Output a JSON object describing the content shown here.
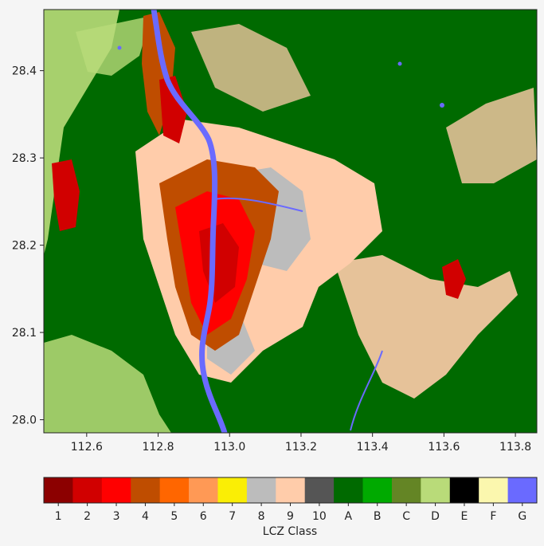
{
  "map": {
    "x_ticks": [
      "112.6",
      "112.8",
      "113.0",
      "113.2",
      "113.4",
      "113.6",
      "113.8"
    ],
    "y_ticks": [
      "28.4",
      "28.3",
      "28.2",
      "28.1",
      "28.0"
    ],
    "x_tick_values": [
      112.6,
      112.8,
      113.0,
      113.2,
      113.4,
      113.6,
      113.8
    ],
    "y_tick_values": [
      28.4,
      28.3,
      28.2,
      28.1,
      28.0
    ],
    "lon_range": [
      112.48,
      113.86
    ],
    "lat_range": [
      27.985,
      28.47
    ]
  },
  "colorbar": {
    "label": "LCZ Class",
    "classes": [
      {
        "name": "1",
        "color": "#8c0000"
      },
      {
        "name": "2",
        "color": "#d10000"
      },
      {
        "name": "3",
        "color": "#ff0000"
      },
      {
        "name": "4",
        "color": "#bf4d00"
      },
      {
        "name": "5",
        "color": "#ff6600"
      },
      {
        "name": "6",
        "color": "#ff9955"
      },
      {
        "name": "7",
        "color": "#faee05"
      },
      {
        "name": "8",
        "color": "#bcbcbc"
      },
      {
        "name": "9",
        "color": "#ffccaa"
      },
      {
        "name": "10",
        "color": "#555555"
      },
      {
        "name": "A",
        "color": "#006a00"
      },
      {
        "name": "B",
        "color": "#00aa00"
      },
      {
        "name": "C",
        "color": "#648525"
      },
      {
        "name": "D",
        "color": "#b9db79"
      },
      {
        "name": "E",
        "color": "#000000"
      },
      {
        "name": "F",
        "color": "#fbf7ae"
      },
      {
        "name": "G",
        "color": "#6a6aff"
      }
    ]
  }
}
